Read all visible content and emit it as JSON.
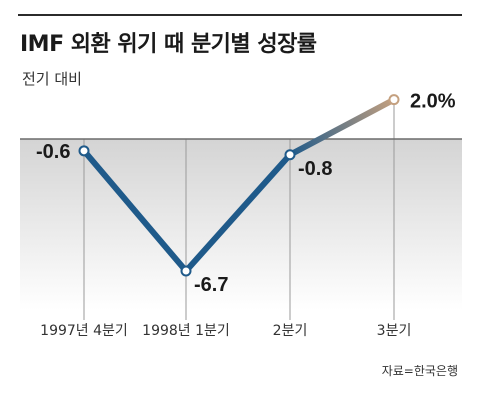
{
  "title": "IMF 외환 위기 때 분기별 성장률",
  "subtitle": "전기 대비",
  "source": "자료=한국은행",
  "colors": {
    "line": "#1f5a8a",
    "highlight": "#c4a07f",
    "baseline": "#6b6b6b",
    "negative_fill_top": "#d4d4d4",
    "negative_fill_bottom": "#ffffff"
  },
  "chart_data": {
    "type": "line",
    "categories": [
      "1997년 4분기",
      "1998년 1분기",
      "2분기",
      "3분기"
    ],
    "values": [
      -0.6,
      -6.7,
      -0.8,
      2.0
    ],
    "value_labels": [
      "-0.6",
      "-6.7",
      "-0.8",
      "2.0%"
    ],
    "title": "IMF 외환 위기 때 분기별 성장률",
    "ylabel": "전기 대비",
    "ylim": [
      -7.5,
      2.5
    ],
    "grid": false,
    "highlight_last_segment": true
  }
}
